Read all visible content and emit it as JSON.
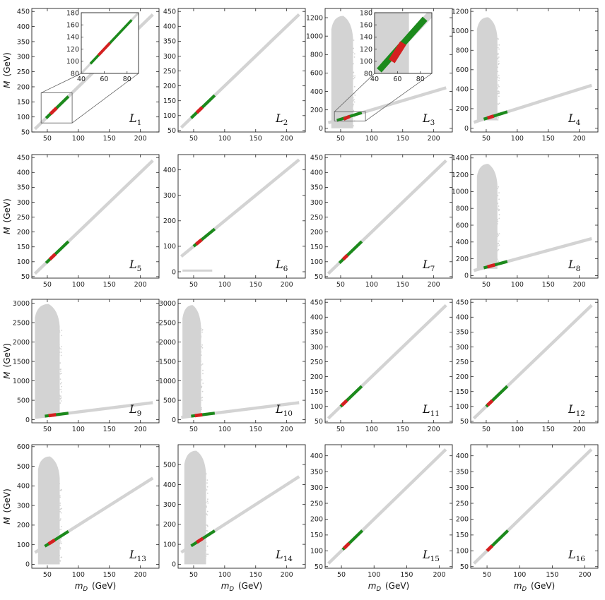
{
  "colors": {
    "background_points": "#d3d3d3",
    "red_points": "#d42020",
    "green_points": "#1c8a1c",
    "frame": "#222222"
  },
  "figure": {
    "y_title_main": "M",
    "y_title_unit": "(GeV)",
    "x_title_main": "m",
    "x_title_sub": "D",
    "x_title_unit": "(GeV)"
  },
  "chart_data": [
    {
      "type": "scatter",
      "label_letter": "L",
      "label_index": "1",
      "xlim": [
        25,
        230
      ],
      "ylim": [
        50,
        460
      ],
      "xticks": [
        50,
        100,
        150,
        200
      ],
      "yticks": [
        50,
        100,
        150,
        200,
        250,
        300,
        350,
        400,
        450
      ],
      "scan_cloud": false,
      "line_band": {
        "x": [
          30,
          220
        ],
        "y": [
          60,
          440
        ]
      },
      "red_segment": {
        "x": [
          55,
          65
        ],
        "y": [
          110,
          130
        ]
      },
      "green_segment": {
        "x": [
          48,
          84
        ],
        "y": [
          96,
          168
        ]
      },
      "inset": {
        "xlim": [
          40,
          90
        ],
        "ylim": [
          80,
          180
        ],
        "xticks": [
          40,
          60,
          80
        ],
        "yticks": [
          80,
          100,
          120,
          140,
          160,
          180
        ],
        "cloud": false,
        "zoom_box": {
          "x": [
            40,
            90
          ],
          "y": [
            80,
            180
          ]
        }
      }
    },
    {
      "type": "scatter",
      "label_letter": "L",
      "label_index": "2",
      "xlim": [
        25,
        230
      ],
      "ylim": [
        45,
        460
      ],
      "xticks": [
        50,
        100,
        150,
        200
      ],
      "yticks": [
        50,
        100,
        150,
        200,
        250,
        300,
        350,
        400,
        450
      ],
      "scan_cloud": false,
      "line_band": {
        "x": [
          30,
          220
        ],
        "y": [
          60,
          440
        ]
      },
      "red_segment": {
        "x": [
          55,
          64
        ],
        "y": [
          110,
          128
        ]
      },
      "green_segment": {
        "x": [
          46,
          84
        ],
        "y": [
          92,
          168
        ]
      }
    },
    {
      "type": "scatter",
      "label_letter": "L",
      "label_index": "3",
      "xlim": [
        25,
        230
      ],
      "ylim": [
        -40,
        1300
      ],
      "xticks": [
        50,
        100,
        150,
        200
      ],
      "yticks": [
        0,
        200,
        400,
        600,
        800,
        1000,
        1200
      ],
      "scan_cloud": true,
      "cloud": {
        "x_left": 35,
        "x_right": 70,
        "y_bottom": 0,
        "y_top": 1220
      },
      "line_band": {
        "x": [
          30,
          220
        ],
        "y": [
          60,
          440
        ]
      },
      "red_segment": {
        "x": [
          55,
          65
        ],
        "y": [
          100,
          130
        ]
      },
      "green_segment": {
        "x": [
          44,
          84
        ],
        "y": [
          85,
          170
        ]
      },
      "inset": {
        "xlim": [
          40,
          90
        ],
        "ylim": [
          80,
          180
        ],
        "xticks": [
          40,
          60,
          80
        ],
        "yticks": [
          80,
          100,
          120,
          140,
          160,
          180
        ],
        "cloud": true,
        "zoom_box": {
          "x": [
            40,
            90
          ],
          "y": [
            80,
            180
          ]
        }
      }
    },
    {
      "type": "scatter",
      "label_letter": "L",
      "label_index": "4",
      "xlim": [
        25,
        230
      ],
      "ylim": [
        -40,
        1230
      ],
      "xticks": [
        50,
        100,
        150,
        200
      ],
      "yticks": [
        0,
        200,
        400,
        600,
        800,
        1000,
        1200
      ],
      "scan_cloud": true,
      "cloud": {
        "x_left": 35,
        "x_right": 68,
        "y_bottom": 80,
        "y_top": 1140
      },
      "line_band": {
        "x": [
          30,
          220
        ],
        "y": [
          60,
          440
        ]
      },
      "red_segment": {
        "x": [
          52,
          62
        ],
        "y": [
          104,
          124
        ]
      },
      "green_segment": {
        "x": [
          46,
          84
        ],
        "y": [
          92,
          168
        ]
      }
    },
    {
      "type": "scatter",
      "label_letter": "L",
      "label_index": "5",
      "xlim": [
        25,
        230
      ],
      "ylim": [
        45,
        460
      ],
      "xticks": [
        50,
        100,
        150,
        200
      ],
      "yticks": [
        50,
        100,
        150,
        200,
        250,
        300,
        350,
        400,
        450
      ],
      "scan_cloud": false,
      "line_band": {
        "x": [
          30,
          220
        ],
        "y": [
          60,
          440
        ]
      },
      "red_segment": {
        "x": [
          54,
          63
        ],
        "y": [
          108,
          126
        ]
      },
      "green_segment": {
        "x": [
          48,
          84
        ],
        "y": [
          96,
          168
        ]
      }
    },
    {
      "type": "scatter",
      "label_letter": "L",
      "label_index": "6",
      "xlim": [
        25,
        230
      ],
      "ylim": [
        -25,
        460
      ],
      "xticks": [
        50,
        100,
        150,
        200
      ],
      "yticks": [
        0,
        100,
        200,
        300,
        400
      ],
      "scan_cloud": false,
      "low_strip": {
        "x": [
          32,
          80
        ],
        "y": [
          0,
          6
        ]
      },
      "line_band": {
        "x": [
          30,
          220
        ],
        "y": [
          60,
          440
        ]
      },
      "red_segment": {
        "x": [
          54,
          63
        ],
        "y": [
          108,
          126
        ]
      },
      "green_segment": {
        "x": [
          50,
          84
        ],
        "y": [
          100,
          168
        ]
      }
    },
    {
      "type": "scatter",
      "label_letter": "L",
      "label_index": "7",
      "xlim": [
        25,
        230
      ],
      "ylim": [
        45,
        460
      ],
      "xticks": [
        50,
        100,
        150,
        200
      ],
      "yticks": [
        50,
        100,
        150,
        200,
        250,
        300,
        350,
        400,
        450
      ],
      "scan_cloud": false,
      "line_band": {
        "x": [
          30,
          220
        ],
        "y": [
          60,
          440
        ]
      },
      "red_segment": {
        "x": [
          54,
          61
        ],
        "y": [
          108,
          122
        ]
      },
      "green_segment": {
        "x": [
          48,
          84
        ],
        "y": [
          96,
          168
        ]
      }
    },
    {
      "type": "scatter",
      "label_letter": "L",
      "label_index": "8",
      "xlim": [
        25,
        230
      ],
      "ylim": [
        -30,
        1440
      ],
      "xticks": [
        50,
        100,
        150,
        200
      ],
      "yticks": [
        0,
        200,
        400,
        600,
        800,
        1000,
        1200,
        1400
      ],
      "scan_cloud": true,
      "cloud": {
        "x_left": 35,
        "x_right": 68,
        "y_bottom": 80,
        "y_top": 1330
      },
      "line_band": {
        "x": [
          30,
          220
        ],
        "y": [
          60,
          440
        ]
      },
      "red_segment": {
        "x": [
          52,
          64
        ],
        "y": [
          104,
          128
        ]
      },
      "green_segment": {
        "x": [
          46,
          84
        ],
        "y": [
          92,
          168
        ]
      }
    },
    {
      "type": "scatter",
      "label_letter": "L",
      "label_index": "9",
      "xlim": [
        25,
        230
      ],
      "ylim": [
        -80,
        3100
      ],
      "xticks": [
        50,
        100,
        150,
        200
      ],
      "yticks": [
        0,
        500,
        1000,
        1500,
        2000,
        2500,
        3000
      ],
      "scan_cloud": true,
      "cloud": {
        "x_left": 30,
        "x_right": 70,
        "y_bottom": 90,
        "y_top": 2980
      },
      "line_band": {
        "x": [
          30,
          220
        ],
        "y": [
          60,
          440
        ]
      },
      "red_segment": {
        "x": [
          52,
          64
        ],
        "y": [
          104,
          128
        ]
      },
      "green_segment": {
        "x": [
          46,
          84
        ],
        "y": [
          92,
          168
        ]
      }
    },
    {
      "type": "scatter",
      "label_letter": "L",
      "label_index": "10",
      "xlim": [
        25,
        230
      ],
      "ylim": [
        -80,
        3100
      ],
      "xticks": [
        50,
        100,
        150,
        200
      ],
      "yticks": [
        0,
        500,
        1000,
        1500,
        2000,
        2500,
        3000
      ],
      "scan_cloud": true,
      "cloud": {
        "x_left": 32,
        "x_right": 62,
        "y_bottom": 90,
        "y_top": 2950
      },
      "line_band": {
        "x": [
          30,
          220
        ],
        "y": [
          60,
          440
        ]
      },
      "red_segment": {
        "x": [
          52,
          64
        ],
        "y": [
          104,
          128
        ]
      },
      "green_segment": {
        "x": [
          46,
          84
        ],
        "y": [
          92,
          168
        ]
      }
    },
    {
      "type": "scatter",
      "label_letter": "L",
      "label_index": "11",
      "xlim": [
        25,
        230
      ],
      "ylim": [
        45,
        460
      ],
      "xticks": [
        50,
        100,
        150,
        200
      ],
      "yticks": [
        50,
        100,
        150,
        200,
        250,
        300,
        350,
        400,
        450
      ],
      "scan_cloud": false,
      "line_band": {
        "x": [
          30,
          220
        ],
        "y": [
          60,
          440
        ]
      },
      "red_segment": {
        "x": [
          52,
          60
        ],
        "y": [
          104,
          120
        ]
      },
      "green_segment": {
        "x": [
          50,
          84
        ],
        "y": [
          100,
          168
        ]
      }
    },
    {
      "type": "scatter",
      "label_letter": "L",
      "label_index": "12",
      "xlim": [
        25,
        230
      ],
      "ylim": [
        45,
        460
      ],
      "xticks": [
        50,
        100,
        150,
        200
      ],
      "yticks": [
        50,
        100,
        150,
        200,
        250,
        300,
        350,
        400,
        450
      ],
      "scan_cloud": false,
      "line_band": {
        "x": [
          30,
          220
        ],
        "y": [
          60,
          440
        ]
      },
      "red_segment": {
        "x": [
          52,
          60
        ],
        "y": [
          104,
          120
        ]
      },
      "green_segment": {
        "x": [
          50,
          84
        ],
        "y": [
          100,
          168
        ]
      }
    },
    {
      "type": "scatter",
      "label_letter": "L",
      "label_index": "13",
      "xlim": [
        25,
        230
      ],
      "ylim": [
        -20,
        610
      ],
      "xticks": [
        50,
        100,
        150,
        200
      ],
      "yticks": [
        0,
        100,
        200,
        300,
        400,
        500,
        600
      ],
      "scan_cloud": true,
      "cloud": {
        "x_left": 35,
        "x_right": 70,
        "y_bottom": 0,
        "y_top": 550
      },
      "line_band": {
        "x": [
          30,
          220
        ],
        "y": [
          60,
          440
        ]
      },
      "red_segment": {
        "x": [
          52,
          62
        ],
        "y": [
          104,
          124
        ]
      },
      "green_segment": {
        "x": [
          46,
          84
        ],
        "y": [
          92,
          168
        ]
      }
    },
    {
      "type": "scatter",
      "label_letter": "L",
      "label_index": "14",
      "xlim": [
        25,
        230
      ],
      "ylim": [
        -20,
        600
      ],
      "xticks": [
        50,
        100,
        150,
        200
      ],
      "yticks": [
        0,
        100,
        200,
        300,
        400,
        500
      ],
      "scan_cloud": true,
      "cloud": {
        "x_left": 35,
        "x_right": 70,
        "y_bottom": 0,
        "y_top": 570
      },
      "line_band": {
        "x": [
          30,
          220
        ],
        "y": [
          60,
          440
        ]
      },
      "red_segment": {
        "x": [
          55,
          65
        ],
        "y": [
          110,
          130
        ]
      },
      "green_segment": {
        "x": [
          46,
          84
        ],
        "y": [
          92,
          168
        ]
      }
    },
    {
      "type": "scatter",
      "label_letter": "L",
      "label_index": "15",
      "xlim": [
        25,
        220
      ],
      "ylim": [
        45,
        435
      ],
      "xticks": [
        50,
        100,
        150,
        200
      ],
      "yticks": [
        50,
        100,
        150,
        200,
        250,
        300,
        350,
        400
      ],
      "scan_cloud": false,
      "line_band": {
        "x": [
          30,
          210
        ],
        "y": [
          60,
          420
        ]
      },
      "red_segment": {
        "x": [
          54,
          62
        ],
        "y": [
          108,
          124
        ]
      },
      "green_segment": {
        "x": [
          52,
          82
        ],
        "y": [
          104,
          164
        ]
      }
    },
    {
      "type": "scatter",
      "label_letter": "L",
      "label_index": "16",
      "xlim": [
        25,
        220
      ],
      "ylim": [
        45,
        435
      ],
      "xticks": [
        50,
        100,
        150,
        200
      ],
      "yticks": [
        50,
        100,
        150,
        200,
        250,
        300,
        350,
        400
      ],
      "scan_cloud": false,
      "line_band": {
        "x": [
          30,
          210
        ],
        "y": [
          60,
          420
        ]
      },
      "red_segment": {
        "x": [
          50,
          58
        ],
        "y": [
          100,
          116
        ]
      },
      "green_segment": {
        "x": [
          50,
          82
        ],
        "y": [
          100,
          164
        ]
      }
    }
  ]
}
